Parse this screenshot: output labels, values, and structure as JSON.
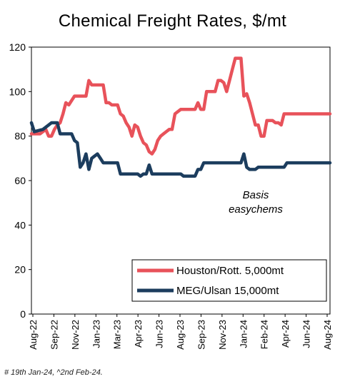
{
  "chart_data": {
    "type": "line",
    "title": "Chemical Freight Rates,  $/mt",
    "xlabel": "",
    "ylabel": "",
    "ylim": [
      0,
      120
    ],
    "yticks": [
      0,
      20,
      40,
      60,
      80,
      100,
      120
    ],
    "x_tick_labels": [
      "Aug-22",
      "Sep-22",
      "Nov-22",
      "Jan-23",
      "Mar-23",
      "Apr-23",
      "Jun-23",
      "Aug-23",
      "Sep-23",
      "Nov-23",
      "Jan-24",
      "Feb-24",
      "Apr-24",
      "Jun-24",
      "Aug-24"
    ],
    "x_index_range": [
      0,
      104
    ],
    "legend": "bottom-right",
    "annotation": [
      "Basis",
      "easychems"
    ],
    "footnote": "# 19th Jan-24, ^2nd Feb-24.",
    "series": [
      {
        "name": "Houston/Rott. 5,000mt",
        "color": "#e8525a",
        "x": [
          0,
          3,
          5,
          6,
          7,
          8,
          9,
          10,
          11,
          12,
          13,
          14,
          15,
          16,
          17,
          18,
          19,
          20,
          21,
          22,
          23,
          24,
          25,
          26,
          27,
          28,
          29,
          30,
          31,
          32,
          33,
          34,
          35,
          36,
          37,
          38,
          39,
          40,
          41,
          42,
          43,
          44,
          45,
          46,
          47,
          48,
          49,
          50,
          51,
          52,
          53,
          54,
          55,
          56,
          57,
          58,
          59,
          60,
          61,
          62,
          63,
          64,
          65,
          66,
          67,
          68,
          69,
          70,
          71,
          72,
          73,
          74,
          75,
          76,
          77,
          78,
          79,
          80,
          81,
          82,
          83,
          84,
          85,
          86,
          87,
          88,
          89,
          90,
          91,
          92,
          93,
          94,
          95,
          96,
          97,
          98,
          99,
          100,
          101,
          102,
          103,
          104
        ],
        "values": [
          81,
          81,
          83,
          80,
          80,
          83,
          85,
          86,
          90,
          95,
          94,
          96,
          98,
          98,
          98,
          98,
          98,
          105,
          103,
          103,
          103,
          103,
          103,
          95,
          95,
          94,
          94,
          94,
          90,
          89,
          86,
          84,
          80,
          85,
          84,
          80,
          77,
          76,
          73,
          72,
          74,
          78,
          80,
          81,
          82,
          83,
          83,
          90,
          91,
          92,
          92,
          92,
          92,
          92,
          92,
          95,
          92,
          92,
          100,
          100,
          100,
          100,
          105,
          105,
          104,
          100,
          105,
          110,
          115,
          115,
          115,
          98,
          99,
          95,
          90,
          85,
          85,
          80,
          80,
          87,
          87,
          87,
          86,
          86,
          85,
          90,
          90,
          90,
          90,
          90,
          90,
          90,
          90,
          90,
          90,
          90,
          90,
          90,
          90,
          90,
          90,
          90
        ]
      },
      {
        "name": "MEG/Ulsan 15,000mt",
        "color": "#1c3d5e",
        "x": [
          0,
          1,
          4,
          7,
          8,
          9,
          10,
          11,
          12,
          13,
          14,
          15,
          16,
          17,
          18,
          19,
          20,
          21,
          22,
          23,
          24,
          25,
          26,
          27,
          28,
          29,
          30,
          31,
          32,
          33,
          34,
          35,
          36,
          37,
          38,
          39,
          40,
          41,
          42,
          43,
          44,
          45,
          46,
          47,
          48,
          49,
          50,
          51,
          52,
          53,
          54,
          55,
          56,
          57,
          58,
          59,
          60,
          61,
          62,
          63,
          64,
          65,
          66,
          67,
          68,
          69,
          70,
          71,
          72,
          73,
          74,
          75,
          76,
          77,
          78,
          79,
          80,
          81,
          82,
          83,
          84,
          85,
          86,
          87,
          88,
          89,
          90,
          91,
          92,
          93,
          94,
          95,
          96,
          97,
          98,
          99,
          100,
          101,
          102,
          103,
          104
        ],
        "values": [
          86,
          82,
          83,
          86,
          86,
          86,
          81,
          81,
          81,
          81,
          81,
          78,
          77,
          66,
          68,
          72,
          65,
          70,
          71,
          72,
          70,
          68,
          68,
          68,
          68,
          68,
          68,
          63,
          63,
          63,
          63,
          63,
          63,
          63,
          62,
          63,
          63,
          67,
          63,
          63,
          63,
          63,
          63,
          63,
          63,
          63,
          63,
          63,
          63,
          62,
          62,
          62,
          62,
          62,
          65,
          65,
          68,
          68,
          68,
          68,
          68,
          68,
          68,
          68,
          68,
          68,
          68,
          68,
          68,
          68,
          72,
          66,
          65,
          65,
          65,
          66,
          66,
          66,
          66,
          66,
          66,
          66,
          66,
          66,
          66,
          68,
          68,
          68,
          68,
          68,
          68,
          68,
          68,
          68,
          68,
          68,
          68,
          68,
          68,
          68,
          68
        ]
      }
    ]
  }
}
